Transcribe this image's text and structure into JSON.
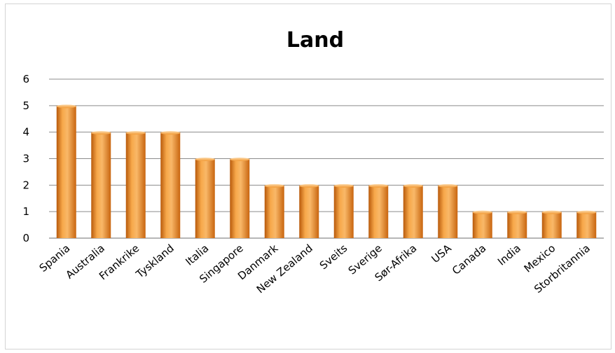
{
  "chart_data": {
    "type": "bar",
    "title": "Land",
    "xlabel": "",
    "ylabel": "",
    "categories": [
      "Spania",
      "Australia",
      "Frankrike",
      "Tyskland",
      "Italia",
      "Singapore",
      "Danmark",
      "New Zealand",
      "Sveits",
      "Sverige",
      "Sør-Afrika",
      "USA",
      "Canada",
      "India",
      "Mexico",
      "Storbritannia"
    ],
    "values": [
      5,
      4,
      4,
      4,
      3,
      3,
      2,
      2,
      2,
      2,
      2,
      2,
      1,
      1,
      1,
      1
    ],
    "ylim": [
      0,
      6
    ],
    "yticks": [
      "0",
      "1",
      "2",
      "3",
      "4",
      "5",
      "6"
    ],
    "grid": true,
    "legend": "none",
    "colors": {
      "bar_light": "#f7b15a",
      "bar_mid": "#f08a1e",
      "bar_dark": "#b85a0c",
      "gridline": "#8c8c8c",
      "frame": "#d4d4d4"
    }
  }
}
